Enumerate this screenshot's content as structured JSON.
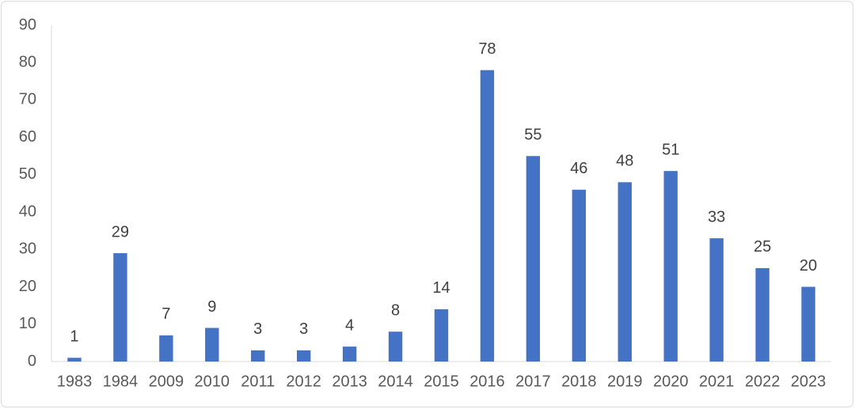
{
  "chart_data": {
    "type": "bar",
    "categories": [
      "1983",
      "1984",
      "2009",
      "2010",
      "2011",
      "2012",
      "2013",
      "2014",
      "2015",
      "2016",
      "2017",
      "2018",
      "2019",
      "2020",
      "2021",
      "2022",
      "2023"
    ],
    "values": [
      1,
      29,
      7,
      9,
      3,
      3,
      4,
      8,
      14,
      78,
      55,
      46,
      48,
      51,
      33,
      25,
      20
    ],
    "color": "#4472c4",
    "ylim": [
      0,
      90
    ],
    "yticks": [
      0,
      10,
      20,
      30,
      40,
      50,
      60,
      70,
      80,
      90
    ],
    "grid": false
  }
}
